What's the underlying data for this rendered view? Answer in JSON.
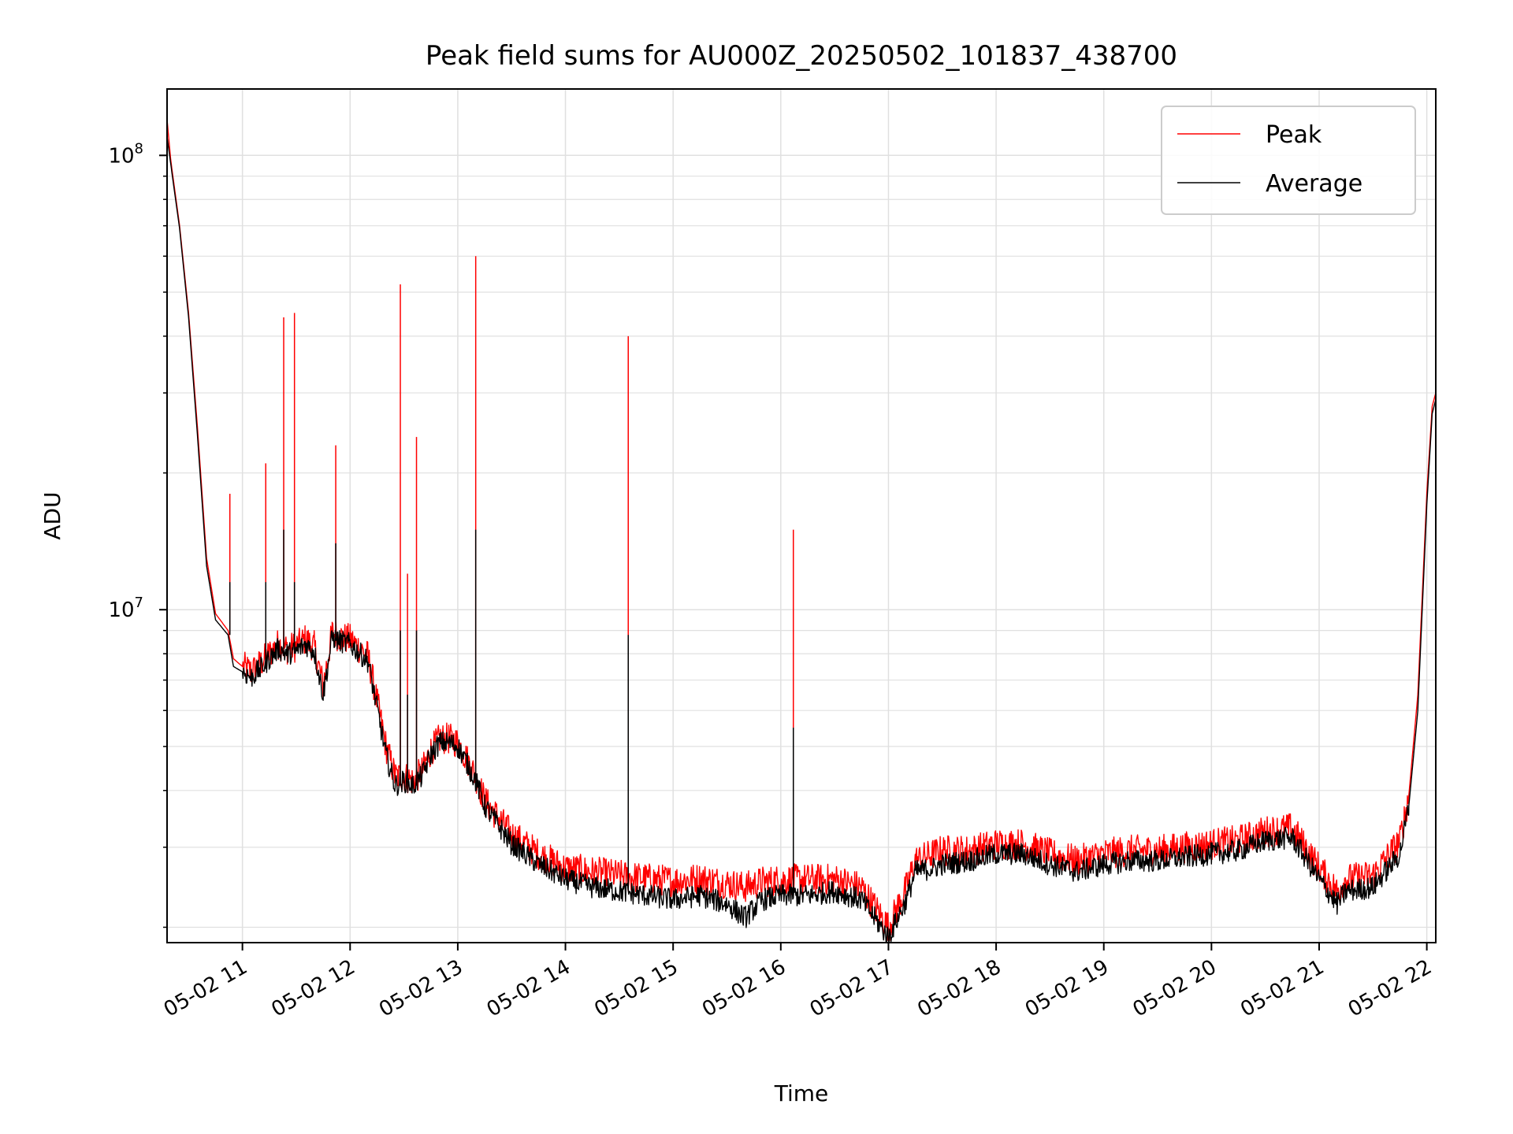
{
  "chart_data": {
    "type": "line",
    "title": "Peak field sums for AU000Z_20250502_101837_438700",
    "xlabel": "Time",
    "ylabel": "ADU",
    "y_scale": "log",
    "ylim": [
      1850000,
      140000000
    ],
    "xlim": [
      "05-02 10:18",
      "05-02 22:05"
    ],
    "x_ticks": [
      {
        "label": "05-02 11",
        "t": "05-02 11:00"
      },
      {
        "label": "05-02 12",
        "t": "05-02 12:00"
      },
      {
        "label": "05-02 13",
        "t": "05-02 13:00"
      },
      {
        "label": "05-02 14",
        "t": "05-02 14:00"
      },
      {
        "label": "05-02 15",
        "t": "05-02 15:00"
      },
      {
        "label": "05-02 16",
        "t": "05-02 16:00"
      },
      {
        "label": "05-02 17",
        "t": "05-02 17:00"
      },
      {
        "label": "05-02 18",
        "t": "05-02 18:00"
      },
      {
        "label": "05-02 19",
        "t": "05-02 19:00"
      },
      {
        "label": "05-02 20",
        "t": "05-02 20:00"
      },
      {
        "label": "05-02 21",
        "t": "05-02 21:00"
      },
      {
        "label": "05-02 22",
        "t": "05-02 22:00"
      }
    ],
    "y_ticks": [
      {
        "base": "10",
        "exp": "7",
        "value": 10000000
      },
      {
        "base": "10",
        "exp": "8",
        "value": 100000000
      }
    ],
    "grid": true,
    "legend_position": "top-right",
    "series": [
      {
        "name": "Peak",
        "color": "#ff0000",
        "x": [
          "05-02 10:18",
          "05-02 10:20",
          "05-02 10:25",
          "05-02 10:30",
          "05-02 10:35",
          "05-02 10:40",
          "05-02 10:45",
          "05-02 10:52",
          "05-02 10:55",
          "05-02 11:00",
          "05-02 11:05",
          "05-02 11:10",
          "05-02 11:15",
          "05-02 11:20",
          "05-02 11:25",
          "05-02 11:30",
          "05-02 11:35",
          "05-02 11:40",
          "05-02 11:45",
          "05-02 11:50",
          "05-02 11:55",
          "05-02 12:00",
          "05-02 12:10",
          "05-02 12:20",
          "05-02 12:25",
          "05-02 12:30",
          "05-02 12:35",
          "05-02 12:40",
          "05-02 12:45",
          "05-02 12:50",
          "05-02 12:55",
          "05-02 13:00",
          "05-02 13:05",
          "05-02 13:10",
          "05-02 13:15",
          "05-02 13:30",
          "05-02 13:45",
          "05-02 14:00",
          "05-02 14:15",
          "05-02 14:30",
          "05-02 14:45",
          "05-02 15:00",
          "05-02 15:15",
          "05-02 15:30",
          "05-02 15:40",
          "05-02 15:50",
          "05-02 16:00",
          "05-02 16:15",
          "05-02 16:30",
          "05-02 16:45",
          "05-02 17:00",
          "05-02 17:10",
          "05-02 17:15",
          "05-02 17:25",
          "05-02 17:30",
          "05-02 17:45",
          "05-02 18:00",
          "05-02 18:15",
          "05-02 18:30",
          "05-02 18:45",
          "05-02 19:00",
          "05-02 19:15",
          "05-02 19:30",
          "05-02 19:45",
          "05-02 20:00",
          "05-02 20:15",
          "05-02 20:30",
          "05-02 20:45",
          "05-02 21:00",
          "05-02 21:10",
          "05-02 21:15",
          "05-02 21:30",
          "05-02 21:45",
          "05-02 21:50",
          "05-02 21:55",
          "05-02 22:00",
          "05-02 22:03",
          "05-02 22:05"
        ],
        "values": [
          120000000,
          98000000,
          70000000,
          45000000,
          25000000,
          13000000,
          9800000,
          9000000,
          7800000,
          7500000,
          7300000,
          7600000,
          8000000,
          8400000,
          8200000,
          8300000,
          8600000,
          8300000,
          6800000,
          8900000,
          8700000,
          8600000,
          7900000,
          5000000,
          4300000,
          4300000,
          4200000,
          4400000,
          4900000,
          5200000,
          5200000,
          5100000,
          4700000,
          4300000,
          3800000,
          3200000,
          2900000,
          2700000,
          2650000,
          2600000,
          2560000,
          2530000,
          2560000,
          2500000,
          2450000,
          2520000,
          2540000,
          2550000,
          2550000,
          2450000,
          2000000,
          2450000,
          2800000,
          2900000,
          2950000,
          2950000,
          3050000,
          3050000,
          2900000,
          2800000,
          2900000,
          2950000,
          2950000,
          3000000,
          3050000,
          3100000,
          3250000,
          3300000,
          2700000,
          2400000,
          2550000,
          2600000,
          3100000,
          3900000,
          6500000,
          18000000,
          28000000,
          30000000
        ]
      },
      {
        "name": "Average",
        "color": "#000000",
        "x": [
          "05-02 10:18",
          "05-02 10:20",
          "05-02 10:25",
          "05-02 10:30",
          "05-02 10:35",
          "05-02 10:40",
          "05-02 10:45",
          "05-02 10:52",
          "05-02 10:55",
          "05-02 11:00",
          "05-02 11:05",
          "05-02 11:10",
          "05-02 11:15",
          "05-02 11:20",
          "05-02 11:25",
          "05-02 11:30",
          "05-02 11:35",
          "05-02 11:40",
          "05-02 11:45",
          "05-02 11:50",
          "05-02 11:55",
          "05-02 12:00",
          "05-02 12:10",
          "05-02 12:20",
          "05-02 12:25",
          "05-02 12:30",
          "05-02 12:35",
          "05-02 12:40",
          "05-02 12:45",
          "05-02 12:50",
          "05-02 12:55",
          "05-02 13:00",
          "05-02 13:05",
          "05-02 13:10",
          "05-02 13:15",
          "05-02 13:30",
          "05-02 13:45",
          "05-02 14:00",
          "05-02 14:15",
          "05-02 14:30",
          "05-02 14:45",
          "05-02 15:00",
          "05-02 15:15",
          "05-02 15:30",
          "05-02 15:40",
          "05-02 15:50",
          "05-02 16:00",
          "05-02 16:15",
          "05-02 16:30",
          "05-02 16:45",
          "05-02 17:00",
          "05-02 17:10",
          "05-02 17:15",
          "05-02 17:25",
          "05-02 17:30",
          "05-02 17:45",
          "05-02 18:00",
          "05-02 18:15",
          "05-02 18:30",
          "05-02 18:45",
          "05-02 19:00",
          "05-02 19:15",
          "05-02 19:30",
          "05-02 19:45",
          "05-02 20:00",
          "05-02 20:15",
          "05-02 20:30",
          "05-02 20:45",
          "05-02 21:00",
          "05-02 21:10",
          "05-02 21:15",
          "05-02 21:30",
          "05-02 21:45",
          "05-02 21:50",
          "05-02 21:55",
          "05-02 22:00",
          "05-02 22:03",
          "05-02 22:05"
        ],
        "values": [
          110000000,
          96000000,
          69000000,
          44000000,
          24000000,
          12500000,
          9500000,
          8800000,
          7500000,
          7300000,
          7100000,
          7400000,
          7800000,
          8200000,
          8000000,
          8100000,
          8400000,
          8100000,
          6500000,
          8700000,
          8500000,
          8400000,
          7700000,
          4800000,
          4100000,
          4200000,
          4100000,
          4300000,
          4800000,
          5100000,
          5100000,
          5000000,
          4600000,
          4200000,
          3700000,
          3050000,
          2750000,
          2550000,
          2450000,
          2400000,
          2350000,
          2300000,
          2350000,
          2250000,
          2100000,
          2300000,
          2350000,
          2350000,
          2400000,
          2300000,
          1900000,
          2300000,
          2650000,
          2700000,
          2750000,
          2800000,
          2900000,
          2900000,
          2750000,
          2650000,
          2750000,
          2800000,
          2800000,
          2850000,
          2900000,
          2950000,
          3100000,
          3150000,
          2550000,
          2250000,
          2400000,
          2450000,
          2900000,
          3700000,
          6000000,
          17000000,
          27000000,
          29000000
        ]
      }
    ],
    "spikes": [
      {
        "t": "05-02 10:53",
        "peak": 18000000,
        "average": 11500000
      },
      {
        "t": "05-02 11:13",
        "peak": 21000000,
        "average": 11500000
      },
      {
        "t": "05-02 11:23",
        "peak": 44000000,
        "average": 15000000
      },
      {
        "t": "05-02 11:29",
        "peak": 45000000,
        "average": 11500000
      },
      {
        "t": "05-02 11:52",
        "peak": 23000000,
        "average": 14000000
      },
      {
        "t": "05-02 12:28",
        "peak": 52000000,
        "average": 9000000
      },
      {
        "t": "05-02 12:32",
        "peak": 12000000,
        "average": 6500000
      },
      {
        "t": "05-02 12:37",
        "peak": 24000000,
        "average": 9000000
      },
      {
        "t": "05-02 13:10",
        "peak": 60000000,
        "average": 15000000
      },
      {
        "t": "05-02 14:35",
        "peak": 40000000,
        "average": 8800000
      },
      {
        "t": "05-02 16:07",
        "peak": 15000000,
        "average": 5500000
      }
    ]
  }
}
